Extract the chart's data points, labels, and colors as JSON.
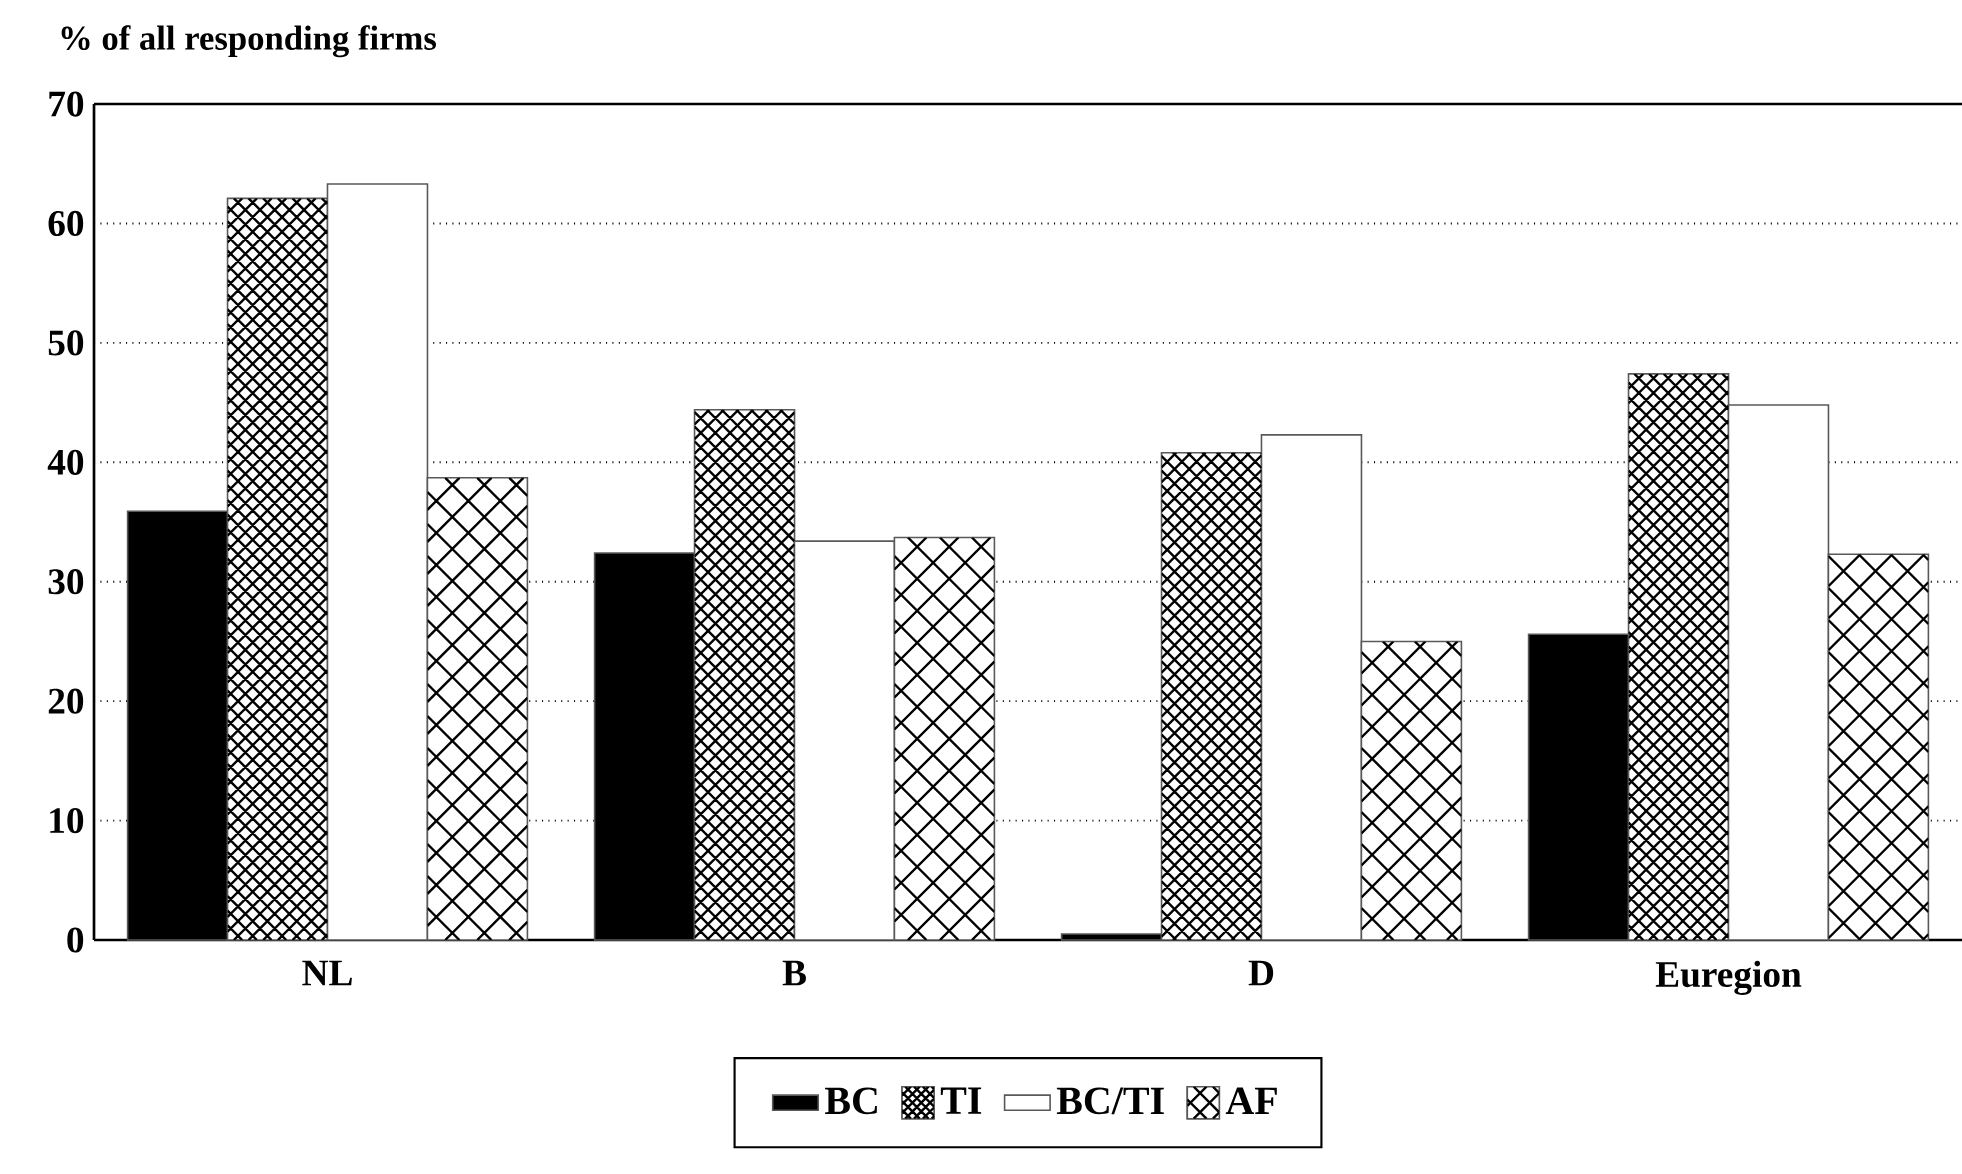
{
  "chart_data": {
    "type": "bar",
    "ylabel": "% of all responding firms",
    "categories": [
      "NL",
      "B",
      "D",
      "Euregion"
    ],
    "series": [
      {
        "name": "BC",
        "color": "#000000",
        "values": [
          35.9,
          32.4,
          0.5,
          25.6
        ]
      },
      {
        "name": "TI",
        "color": "#ffffff",
        "values": [
          62.1,
          44.4,
          40.8,
          47.4
        ]
      },
      {
        "name": "BC/TI",
        "color": "#ffffff",
        "values": [
          63.3,
          33.4,
          42.3,
          44.8
        ]
      },
      {
        "name": "AF",
        "color": "#ffffff",
        "values": [
          38.7,
          33.7,
          25.0,
          32.3
        ]
      }
    ],
    "ylim": [
      0,
      70
    ],
    "yticks": [
      0,
      10,
      20,
      30,
      40,
      50,
      60,
      70
    ],
    "grid": "y",
    "legend": "bottom"
  }
}
